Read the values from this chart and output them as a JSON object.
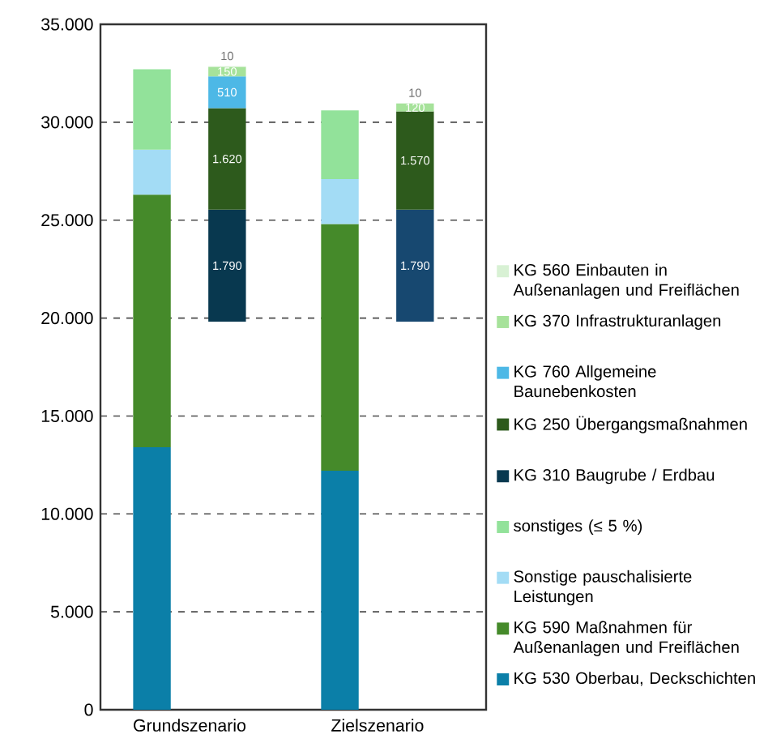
{
  "chart_data": {
    "type": "bar",
    "stacked": true,
    "categories": [
      "Grundszenario",
      "Zielszenario"
    ],
    "ylim": [
      0,
      35000
    ],
    "yticks": [
      {
        "value": 0,
        "label": "0"
      },
      {
        "value": 5000,
        "label": "5.000"
      },
      {
        "value": 10000,
        "label": "10.000"
      },
      {
        "value": 15000,
        "label": "15.000"
      },
      {
        "value": 20000,
        "label": "20.000"
      },
      {
        "value": 25000,
        "label": "25.000"
      },
      {
        "value": 30000,
        "label": "30.000"
      },
      {
        "value": 35000,
        "label": "35.000"
      }
    ],
    "y2lim": [
      -6200,
      4750
    ],
    "tick_labels": "xy",
    "grid": "y",
    "legend": "right",
    "series": [
      {
        "name": "KG 530 Oberbau, Deckschichten",
        "color": "#0b7fa8",
        "values": [
          13400,
          12200
        ]
      },
      {
        "name": "KG 590 Maßnahmen für Außenanlagen und Freiflächen",
        "color": "#458a2a",
        "values": [
          12900,
          12600
        ]
      },
      {
        "name": "Sonstige pauschalisierte Leistungen",
        "color": "#a3dcf5",
        "values": [
          2300,
          2300
        ]
      },
      {
        "name": "sonstiges (≤ 5 %)",
        "color": "#92e29a",
        "values": [
          4100,
          3500
        ]
      },
      {
        "name": "KG 310 Baugrube / Erdbau",
        "colors": [
          "#08384f",
          "#174870"
        ],
        "axis": "y2",
        "values": [
          1790,
          1790
        ],
        "value_labels": [
          "1.790",
          "1.790"
        ]
      },
      {
        "name": "KG 250 Übergangsmaßnahmen",
        "color": "#2d5a1c",
        "axis": "y2",
        "values": [
          1620,
          1570
        ],
        "value_labels": [
          "1.620",
          "1.570"
        ]
      },
      {
        "name": "KG 760  Allgemeine Baunebenkosten",
        "color": "#4db8e6",
        "axis": "y2",
        "values": [
          510,
          null
        ],
        "value_labels": [
          "510",
          null
        ]
      },
      {
        "name": "KG 370 Infrastrukturanlagen",
        "color": "#a6e29a",
        "axis": "y2",
        "values": [
          150,
          120
        ],
        "value_labels": [
          "150",
          "120"
        ]
      },
      {
        "name": "KG 560 Einbauten in Außenanlagen und Freiflächen",
        "color": "#d8f1d4",
        "axis": "y2",
        "values": [
          10,
          10
        ],
        "value_labels": [
          "10",
          "10"
        ]
      }
    ]
  }
}
